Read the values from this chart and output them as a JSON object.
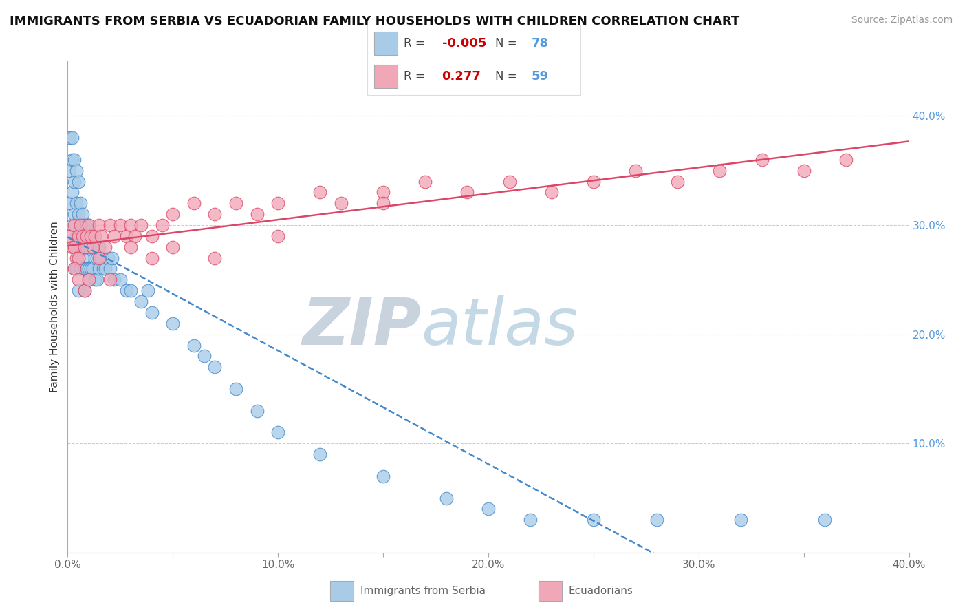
{
  "title": "IMMIGRANTS FROM SERBIA VS ECUADORIAN FAMILY HOUSEHOLDS WITH CHILDREN CORRELATION CHART",
  "source_text": "Source: ZipAtlas.com",
  "ylabel": "Family Households with Children",
  "xlim": [
    0.0,
    0.4
  ],
  "ylim": [
    0.0,
    0.45
  ],
  "serbia_R": -0.005,
  "serbia_N": 78,
  "ecuador_R": 0.277,
  "ecuador_N": 59,
  "serbia_color": "#a8cce8",
  "ecuador_color": "#f0a8b8",
  "serbia_line_color": "#4488cc",
  "ecuador_line_color": "#dd4466",
  "right_tick_color": "#5599dd",
  "background_color": "#ffffff",
  "grid_color": "#cccccc",
  "watermark_zip": "ZIP",
  "watermark_atlas": "atlas",
  "watermark_color_zip": "#c0ccd8",
  "watermark_color_atlas": "#b0ccdd",
  "title_color": "#111111",
  "source_color": "#999999",
  "label_color": "#666666",
  "serbia_x": [
    0.001,
    0.001,
    0.001,
    0.002,
    0.002,
    0.002,
    0.002,
    0.003,
    0.003,
    0.003,
    0.003,
    0.003,
    0.004,
    0.004,
    0.004,
    0.004,
    0.005,
    0.005,
    0.005,
    0.005,
    0.005,
    0.006,
    0.006,
    0.006,
    0.006,
    0.007,
    0.007,
    0.007,
    0.008,
    0.008,
    0.008,
    0.008,
    0.009,
    0.009,
    0.009,
    0.01,
    0.01,
    0.01,
    0.01,
    0.011,
    0.011,
    0.012,
    0.012,
    0.013,
    0.013,
    0.014,
    0.014,
    0.015,
    0.015,
    0.016,
    0.017,
    0.018,
    0.019,
    0.02,
    0.021,
    0.022,
    0.025,
    0.028,
    0.03,
    0.035,
    0.038,
    0.04,
    0.05,
    0.06,
    0.065,
    0.07,
    0.08,
    0.09,
    0.1,
    0.12,
    0.15,
    0.18,
    0.2,
    0.22,
    0.25,
    0.28,
    0.32,
    0.36
  ],
  "serbia_y": [
    0.38,
    0.35,
    0.32,
    0.38,
    0.36,
    0.33,
    0.3,
    0.36,
    0.34,
    0.31,
    0.28,
    0.26,
    0.35,
    0.32,
    0.29,
    0.26,
    0.34,
    0.31,
    0.29,
    0.27,
    0.24,
    0.32,
    0.3,
    0.28,
    0.26,
    0.31,
    0.29,
    0.27,
    0.3,
    0.28,
    0.26,
    0.24,
    0.3,
    0.28,
    0.26,
    0.3,
    0.28,
    0.26,
    0.25,
    0.29,
    0.26,
    0.28,
    0.26,
    0.27,
    0.25,
    0.27,
    0.25,
    0.28,
    0.26,
    0.27,
    0.26,
    0.26,
    0.27,
    0.26,
    0.27,
    0.25,
    0.25,
    0.24,
    0.24,
    0.23,
    0.24,
    0.22,
    0.21,
    0.19,
    0.18,
    0.17,
    0.15,
    0.13,
    0.11,
    0.09,
    0.07,
    0.05,
    0.04,
    0.03,
    0.03,
    0.03,
    0.03,
    0.03
  ],
  "ecuador_x": [
    0.001,
    0.002,
    0.003,
    0.003,
    0.004,
    0.005,
    0.005,
    0.006,
    0.007,
    0.008,
    0.009,
    0.01,
    0.011,
    0.012,
    0.013,
    0.015,
    0.016,
    0.018,
    0.02,
    0.022,
    0.025,
    0.028,
    0.03,
    0.032,
    0.035,
    0.04,
    0.045,
    0.05,
    0.06,
    0.07,
    0.08,
    0.09,
    0.1,
    0.12,
    0.13,
    0.15,
    0.17,
    0.19,
    0.21,
    0.23,
    0.25,
    0.27,
    0.29,
    0.31,
    0.33,
    0.35,
    0.37,
    0.003,
    0.005,
    0.008,
    0.01,
    0.015,
    0.02,
    0.03,
    0.04,
    0.05,
    0.07,
    0.1,
    0.15
  ],
  "ecuador_y": [
    0.29,
    0.28,
    0.28,
    0.3,
    0.27,
    0.29,
    0.27,
    0.3,
    0.29,
    0.28,
    0.29,
    0.3,
    0.29,
    0.28,
    0.29,
    0.3,
    0.29,
    0.28,
    0.3,
    0.29,
    0.3,
    0.29,
    0.3,
    0.29,
    0.3,
    0.29,
    0.3,
    0.31,
    0.32,
    0.31,
    0.32,
    0.31,
    0.32,
    0.33,
    0.32,
    0.33,
    0.34,
    0.33,
    0.34,
    0.33,
    0.34,
    0.35,
    0.34,
    0.35,
    0.36,
    0.35,
    0.36,
    0.26,
    0.25,
    0.24,
    0.25,
    0.27,
    0.25,
    0.28,
    0.27,
    0.28,
    0.27,
    0.29,
    0.32
  ]
}
